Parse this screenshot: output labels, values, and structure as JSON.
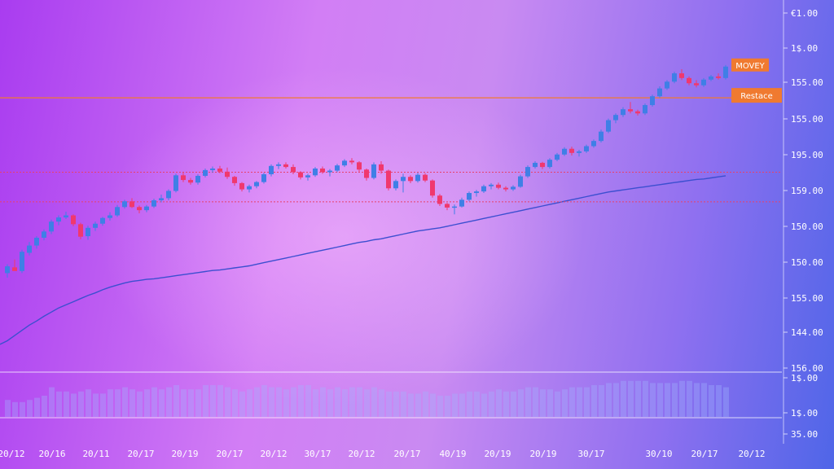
{
  "chart_data": {
    "type": "candlestick",
    "y_tick_labels": [
      "€1.00",
      "1$.00",
      "155.00",
      "155.00",
      "195.00",
      "159.00",
      "150.00",
      "150.00",
      "155.00",
      "144.00",
      "156.00",
      "1$.00",
      "1$.00",
      "35.00"
    ],
    "x_tick_labels": [
      "20/12",
      "20/16",
      "20/11",
      "20/17",
      "20/19",
      "20/17",
      "20/12",
      "30/17",
      "20/12",
      "20/17",
      "40/19",
      "20/19",
      "20/19",
      "30/17",
      "30/10",
      "20/17",
      "20/12"
    ],
    "annotations": {
      "moving_tag": "MOVEY",
      "resistance_tag": "Restace"
    },
    "ohlc": [
      [
        141.5,
        143.2,
        140.6,
        142.8
      ],
      [
        142.6,
        144.1,
        142.0,
        141.9
      ],
      [
        141.9,
        146.0,
        141.5,
        145.6
      ],
      [
        145.4,
        147.5,
        144.9,
        146.8
      ],
      [
        146.8,
        148.6,
        146.2,
        148.3
      ],
      [
        148.3,
        149.9,
        147.8,
        149.5
      ],
      [
        149.5,
        151.8,
        149.0,
        151.4
      ],
      [
        151.4,
        152.6,
        150.7,
        152.2
      ],
      [
        152.2,
        153.3,
        151.9,
        152.6
      ],
      [
        152.6,
        152.8,
        150.5,
        150.9
      ],
      [
        150.9,
        151.2,
        148.0,
        148.5
      ],
      [
        148.6,
        150.6,
        147.9,
        150.2
      ],
      [
        150.2,
        151.4,
        149.6,
        151.0
      ],
      [
        151.0,
        152.3,
        150.6,
        152.1
      ],
      [
        152.1,
        153.2,
        151.6,
        152.6
      ],
      [
        152.6,
        154.6,
        152.3,
        154.2
      ],
      [
        154.2,
        155.6,
        153.9,
        155.3
      ],
      [
        155.3,
        155.9,
        154.0,
        154.2
      ],
      [
        154.2,
        154.5,
        153.0,
        153.6
      ],
      [
        153.6,
        154.6,
        153.2,
        154.3
      ],
      [
        154.3,
        155.8,
        154.0,
        155.5
      ],
      [
        155.5,
        156.6,
        155.1,
        155.9
      ],
      [
        155.9,
        157.6,
        155.5,
        157.3
      ],
      [
        157.3,
        160.6,
        157.0,
        160.3
      ],
      [
        160.3,
        160.8,
        159.0,
        159.4
      ],
      [
        159.4,
        159.8,
        158.5,
        158.9
      ],
      [
        158.9,
        160.5,
        158.5,
        160.2
      ],
      [
        160.2,
        161.6,
        159.9,
        161.3
      ],
      [
        161.3,
        162.0,
        160.8,
        161.6
      ],
      [
        161.6,
        162.1,
        160.7,
        161.0
      ],
      [
        161.0,
        161.8,
        159.6,
        160.0
      ],
      [
        160.0,
        160.2,
        158.3,
        158.8
      ],
      [
        158.8,
        159.0,
        157.2,
        157.6
      ],
      [
        157.6,
        158.5,
        157.0,
        158.2
      ],
      [
        158.2,
        159.2,
        157.8,
        159.0
      ],
      [
        159.0,
        160.8,
        158.7,
        160.5
      ],
      [
        160.5,
        162.4,
        160.1,
        162.1
      ],
      [
        162.1,
        162.8,
        161.5,
        162.4
      ],
      [
        162.4,
        162.8,
        161.6,
        161.9
      ],
      [
        161.9,
        162.4,
        160.5,
        160.9
      ],
      [
        160.9,
        161.1,
        159.5,
        159.9
      ],
      [
        159.9,
        160.6,
        159.3,
        160.3
      ],
      [
        160.3,
        161.9,
        160.0,
        161.6
      ],
      [
        161.6,
        162.0,
        160.6,
        160.9
      ],
      [
        160.9,
        161.5,
        160.1,
        161.2
      ],
      [
        161.2,
        162.5,
        160.9,
        162.2
      ],
      [
        162.2,
        163.4,
        161.9,
        163.1
      ],
      [
        163.1,
        163.6,
        162.4,
        162.8
      ],
      [
        162.8,
        163.0,
        161.0,
        161.4
      ],
      [
        161.4,
        161.6,
        159.3,
        159.8
      ],
      [
        159.8,
        162.8,
        159.5,
        162.4
      ],
      [
        162.4,
        163.0,
        160.6,
        161.2
      ],
      [
        161.2,
        161.4,
        157.4,
        157.8
      ],
      [
        157.8,
        159.5,
        157.4,
        159.2
      ],
      [
        159.2,
        160.6,
        157.0,
        160.0
      ],
      [
        160.0,
        160.3,
        158.8,
        159.2
      ],
      [
        159.2,
        160.8,
        158.9,
        160.4
      ],
      [
        160.4,
        160.7,
        159.0,
        159.3
      ],
      [
        159.3,
        159.5,
        156.0,
        156.4
      ],
      [
        156.4,
        156.7,
        154.4,
        154.8
      ],
      [
        154.8,
        155.0,
        153.6,
        154.1
      ],
      [
        154.1,
        154.7,
        152.8,
        154.3
      ],
      [
        154.3,
        156.0,
        154.1,
        155.6
      ],
      [
        155.6,
        157.2,
        155.3,
        156.9
      ],
      [
        156.9,
        157.5,
        156.2,
        157.2
      ],
      [
        157.2,
        158.5,
        156.9,
        158.2
      ],
      [
        158.2,
        158.8,
        157.6,
        158.5
      ],
      [
        158.5,
        158.9,
        157.6,
        157.9
      ],
      [
        157.9,
        158.2,
        157.2,
        157.6
      ],
      [
        157.6,
        158.4,
        157.3,
        158.1
      ],
      [
        158.1,
        160.4,
        157.9,
        160.1
      ],
      [
        160.1,
        162.2,
        159.8,
        161.9
      ],
      [
        161.9,
        163.0,
        161.6,
        162.7
      ],
      [
        162.7,
        162.9,
        161.5,
        161.9
      ],
      [
        161.9,
        163.6,
        161.6,
        163.3
      ],
      [
        163.3,
        164.6,
        163.0,
        164.3
      ],
      [
        164.3,
        165.7,
        164.0,
        165.4
      ],
      [
        165.4,
        165.8,
        164.1,
        164.6
      ],
      [
        164.6,
        165.2,
        163.9,
        164.9
      ],
      [
        164.9,
        166.2,
        164.6,
        165.9
      ],
      [
        165.9,
        167.2,
        165.6,
        166.9
      ],
      [
        166.9,
        169.1,
        166.6,
        168.7
      ],
      [
        168.7,
        171.2,
        168.4,
        170.9
      ],
      [
        170.9,
        172.2,
        170.3,
        171.9
      ],
      [
        171.9,
        173.4,
        171.5,
        173.0
      ],
      [
        173.0,
        174.4,
        172.2,
        172.6
      ],
      [
        172.6,
        172.9,
        171.8,
        172.2
      ],
      [
        172.2,
        174.1,
        171.9,
        173.8
      ],
      [
        173.8,
        175.8,
        173.5,
        175.5
      ],
      [
        175.5,
        177.4,
        175.2,
        177.0
      ],
      [
        177.0,
        178.6,
        176.7,
        178.3
      ],
      [
        178.3,
        180.2,
        178.0,
        179.9
      ],
      [
        179.9,
        180.7,
        178.6,
        179.0
      ],
      [
        179.0,
        179.3,
        177.6,
        178.0
      ],
      [
        178.0,
        178.6,
        177.2,
        177.6
      ],
      [
        177.6,
        179.0,
        177.3,
        178.7
      ],
      [
        178.7,
        179.6,
        178.4,
        179.3
      ],
      [
        179.3,
        179.9,
        178.7,
        179.0
      ],
      [
        179.0,
        181.5,
        178.7,
        181.2
      ]
    ],
    "moving_average": [
      128.5,
      129.5,
      130.5,
      131.5,
      132.3,
      133.2,
      134.0,
      134.8,
      135.4,
      136.0,
      136.6,
      137.2,
      137.7,
      138.3,
      138.8,
      139.2,
      139.6,
      139.9,
      140.1,
      140.3,
      140.4,
      140.6,
      140.8,
      141.0,
      141.2,
      141.4,
      141.6,
      141.8,
      142.0,
      142.1,
      142.3,
      142.5,
      142.7,
      142.9,
      143.2,
      143.5,
      143.8,
      144.1,
      144.4,
      144.7,
      145.0,
      145.3,
      145.6,
      145.9,
      146.2,
      146.5,
      146.8,
      147.1,
      147.4,
      147.6,
      147.9,
      148.1,
      148.4,
      148.7,
      149.0,
      149.3,
      149.6,
      149.8,
      150.0,
      150.2,
      150.5,
      150.8,
      151.1,
      151.4,
      151.7,
      152.0,
      152.3,
      152.6,
      152.9,
      153.2,
      153.5,
      153.8,
      154.1,
      154.4,
      154.7,
      155.0,
      155.3,
      155.6,
      155.9,
      156.2,
      156.5,
      156.8,
      157.1,
      157.3,
      157.5,
      157.7,
      157.9,
      158.1,
      158.3,
      158.5,
      158.7,
      158.9,
      159.1,
      159.3,
      159.5,
      159.6,
      159.8,
      160.0,
      160.2
    ],
    "volume": [
      8,
      7,
      7,
      8,
      9,
      10,
      14,
      12,
      12,
      11,
      12,
      13,
      11,
      11,
      13,
      13,
      14,
      13,
      12,
      13,
      14,
      13,
      14,
      15,
      13,
      13,
      13,
      15,
      15,
      15,
      14,
      13,
      12,
      13,
      14,
      15,
      14,
      14,
      13,
      14,
      15,
      15,
      13,
      14,
      13,
      14,
      13,
      14,
      14,
      13,
      14,
      13,
      12,
      12,
      12,
      11,
      11,
      12,
      11,
      10,
      10,
      11,
      11,
      12,
      12,
      11,
      12,
      13,
      12,
      12,
      13,
      14,
      14,
      13,
      13,
      12,
      13,
      14,
      14,
      14,
      15,
      15,
      16,
      16,
      17,
      17,
      17,
      17,
      16,
      16,
      16,
      16,
      17,
      17,
      16,
      16,
      15,
      15,
      14
    ],
    "reference_lines": {
      "resistance": 175.2,
      "level_upper": 160.9,
      "level_lower": 155.2
    },
    "bands": [
      140,
      191.2
    ],
    "ylim": [
      122,
      194
    ],
    "colors": {
      "up": "#3f7fe6",
      "down": "#f0386e",
      "moving_average": "#3c4fd0",
      "resistance": "#f07a30",
      "level": "#e8406a",
      "tag": "#f07a30"
    }
  }
}
